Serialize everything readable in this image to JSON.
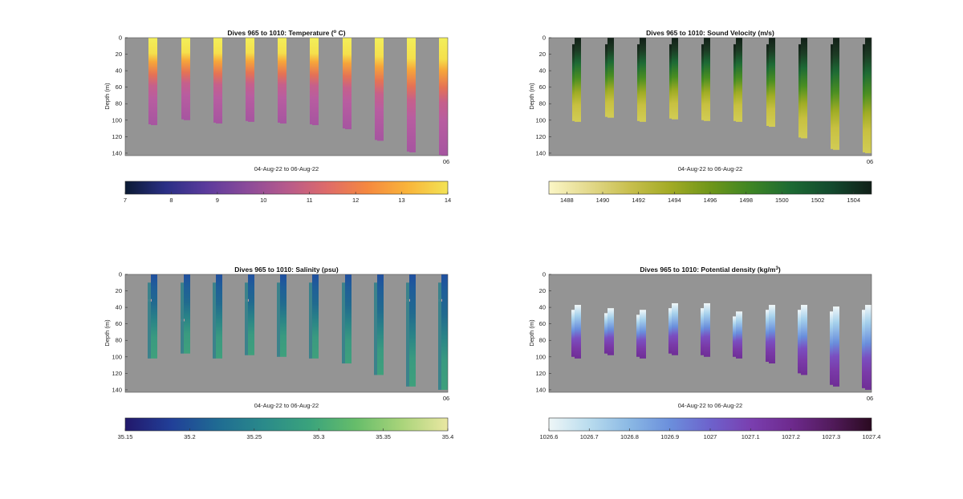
{
  "chart_data": [
    {
      "type": "heatmap",
      "title_main": "Dives 965 to 1010: Temperature (",
      "title_sup": "o",
      "title_tail": " C)",
      "ylabel": "Depth (m)",
      "xlabel": "04-Aug-22 to 06-Aug-22",
      "x_corner_label": "06",
      "yticks": [
        "0",
        "20",
        "40",
        "60",
        "80",
        "100",
        "120",
        "140"
      ],
      "ylim": [
        0,
        143
      ],
      "colorbar": {
        "ticks": [
          "7",
          "8",
          "9",
          "10",
          "11",
          "12",
          "13",
          "14"
        ],
        "range": [
          7,
          14
        ],
        "colors": [
          "#0b1a33",
          "#2a2f85",
          "#5b3b9c",
          "#8a4a9a",
          "#b65a8c",
          "#de6b6a",
          "#f5883f",
          "#f9b43a",
          "#f3e354"
        ]
      },
      "profiles": [
        {
          "max_depth": 106,
          "warm_bottom": 30
        },
        {
          "max_depth": 100,
          "warm_bottom": 28
        },
        {
          "max_depth": 104,
          "warm_bottom": 30
        },
        {
          "max_depth": 102,
          "warm_bottom": 32
        },
        {
          "max_depth": 104,
          "warm_bottom": 30
        },
        {
          "max_depth": 106,
          "warm_bottom": 30
        },
        {
          "max_depth": 111,
          "warm_bottom": 30
        },
        {
          "max_depth": 125,
          "warm_bottom": 32
        },
        {
          "max_depth": 139,
          "warm_bottom": 30
        },
        {
          "max_depth": 143,
          "warm_bottom": 26
        }
      ]
    },
    {
      "type": "heatmap",
      "title_main": "Dives 965 to 1010: Sound Velocity (m/s)",
      "ylabel": "Depth (m)",
      "xlabel": "04-Aug-22 to 06-Aug-22",
      "x_corner_label": "06",
      "yticks": [
        "0",
        "20",
        "40",
        "60",
        "80",
        "100",
        "120",
        "140"
      ],
      "ylim": [
        0,
        143
      ],
      "colorbar": {
        "ticks": [
          "1488",
          "1490",
          "1492",
          "1494",
          "1496",
          "1498",
          "1500",
          "1502",
          "1504"
        ],
        "range": [
          1487,
          1505
        ],
        "colors": [
          "#fbf6c6",
          "#e3d98c",
          "#c8bf4e",
          "#a3ab25",
          "#6f961a",
          "#3e8524",
          "#1c6a33",
          "#134a2e",
          "#111f18"
        ]
      },
      "profiles": [
        {
          "max_depth": 102
        },
        {
          "max_depth": 97
        },
        {
          "max_depth": 102
        },
        {
          "max_depth": 99
        },
        {
          "max_depth": 101
        },
        {
          "max_depth": 102
        },
        {
          "max_depth": 108
        },
        {
          "max_depth": 122
        },
        {
          "max_depth": 136
        },
        {
          "max_depth": 140
        }
      ]
    },
    {
      "type": "heatmap",
      "title_main": "Dives 965 to 1010: Salinity (psu)",
      "ylabel": "Depth (m)",
      "xlabel": "04-Aug-22 to 06-Aug-22",
      "x_corner_label": "06",
      "yticks": [
        "0",
        "20",
        "40",
        "60",
        "80",
        "100",
        "120",
        "140"
      ],
      "ylim": [
        0,
        143
      ],
      "colorbar": {
        "ticks": [
          "35.15",
          "35.2",
          "35.25",
          "35.3",
          "35.35",
          "35.4"
        ],
        "range": [
          35.15,
          35.4
        ],
        "colors": [
          "#22186b",
          "#213f98",
          "#1f6b93",
          "#2a8a8a",
          "#3aa37c",
          "#66bd6a",
          "#a9d47a",
          "#eae7a2"
        ]
      },
      "profiles": [
        {
          "max_depth": 102
        },
        {
          "max_depth": 96
        },
        {
          "max_depth": 102
        },
        {
          "max_depth": 98
        },
        {
          "max_depth": 100
        },
        {
          "max_depth": 102
        },
        {
          "max_depth": 108
        },
        {
          "max_depth": 122
        },
        {
          "max_depth": 136
        },
        {
          "max_depth": 140
        }
      ]
    },
    {
      "type": "heatmap",
      "title_main": "Dives 965 to 1010: Potential density (kg/m",
      "title_sup": "3",
      "title_tail": ")",
      "ylabel": "Depth (m)",
      "xlabel": "04-Aug-22 to 06-Aug-22",
      "x_corner_label": "06",
      "yticks": [
        "0",
        "20",
        "40",
        "60",
        "80",
        "100",
        "120",
        "140"
      ],
      "ylim": [
        0,
        143
      ],
      "colorbar": {
        "ticks": [
          "1026.6",
          "1026.7",
          "1026.8",
          "1026.9",
          "1027",
          "1027.1",
          "1027.2",
          "1027.3",
          "1027.4"
        ],
        "range": [
          1026.6,
          1027.4
        ],
        "colors": [
          "#eef6f7",
          "#b9dcee",
          "#8ab8e4",
          "#6b8fdc",
          "#6d62cc",
          "#7a3fb0",
          "#6e2a8e",
          "#521b5c",
          "#2a0a20"
        ]
      },
      "profiles": [
        {
          "max_depth": 102,
          "top_depth": 37
        },
        {
          "max_depth": 98,
          "top_depth": 41
        },
        {
          "max_depth": 102,
          "top_depth": 43
        },
        {
          "max_depth": 98,
          "top_depth": 35
        },
        {
          "max_depth": 100,
          "top_depth": 35
        },
        {
          "max_depth": 102,
          "top_depth": 45
        },
        {
          "max_depth": 108,
          "top_depth": 37
        },
        {
          "max_depth": 122,
          "top_depth": 37
        },
        {
          "max_depth": 136,
          "top_depth": 39
        },
        {
          "max_depth": 140,
          "top_depth": 37
        }
      ]
    }
  ]
}
